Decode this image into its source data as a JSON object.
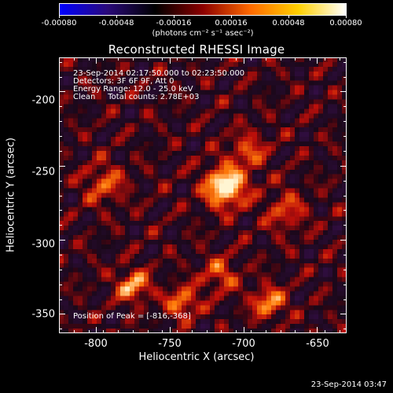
{
  "colorbar": {
    "tick_labels": [
      "-0.00080",
      "-0.00048",
      "-0.00016",
      "0.00016",
      "0.00048",
      "0.00080"
    ],
    "units": "(photons cm⁻² s⁻¹ asec⁻²)",
    "range": [
      -0.0008,
      0.0008
    ],
    "colors": [
      "#0000ff",
      "#2a0a7a",
      "#000000",
      "#8b0000",
      "#ff6a00",
      "#ffd000",
      "#ffffff"
    ]
  },
  "title": "Reconstructed RHESSI Image",
  "info": {
    "time_range": "23-Sep-2014 02:17:50.000 to 02:23:50.000",
    "detectors": "Detectors: 3F 6F 9F, Att 0",
    "energy_range": "Energy Range: 12.0 - 25.0 keV",
    "clean_counts": "Clean     Total counts: 2.78E+03"
  },
  "peak_label": "Position of Peak = [-816,-368]",
  "x_axis": {
    "label": "Heliocentric X (arcsec)",
    "ticks": [
      "-800",
      "-750",
      "-700",
      "-650"
    ],
    "tick_values": [
      -800,
      -750,
      -700,
      -650
    ],
    "range": [
      -825,
      -630
    ]
  },
  "y_axis": {
    "label": "Heliocentric Y (arcsec)",
    "ticks": [
      "-200",
      "-250",
      "-300",
      "-350"
    ],
    "tick_values": [
      -200,
      -250,
      -300,
      -350
    ],
    "range": [
      -363,
      -177
    ]
  },
  "footer_date": "23-Sep-2014 03:47"
}
